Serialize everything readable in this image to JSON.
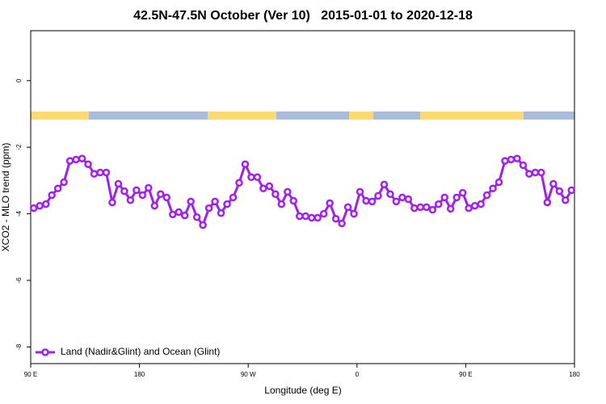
{
  "chart_data": {
    "type": "line",
    "title": "42.5N-47.5N October (Ver 10)   2015-01-01 to 2020-12-18",
    "x_label": "Longitude (deg E)",
    "y_label": "XCO2 - MLO trend (ppm)",
    "xlim": [
      90,
      540
    ],
    "ylim": [
      -8.5,
      1.5
    ],
    "xticks": [
      {
        "value": 90,
        "label": "90 E"
      },
      180,
      {
        "value": 270,
        "label": "90 W"
      },
      {
        "value": 360,
        "label": "0"
      },
      {
        "value": 450,
        "label": "90 E"
      },
      {
        "value": 540,
        "label": "180"
      }
    ],
    "yticks": [
      0,
      -2,
      -4,
      -6,
      -8
    ],
    "legend": "bottomleft",
    "x": [
      92.5,
      97.5,
      102.5,
      107.5,
      112.5,
      117.5,
      122.5,
      127.5,
      132.5,
      137.5,
      142.5,
      147.5,
      152.5,
      157.5,
      162.5,
      167.5,
      172.5,
      177.5,
      182.5,
      187.5,
      192.5,
      197.5,
      202.5,
      207.5,
      212.5,
      217.5,
      222.5,
      227.5,
      232.5,
      237.5,
      242.5,
      247.5,
      252.5,
      257.5,
      262.5,
      267.5,
      272.5,
      277.5,
      282.5,
      287.5,
      292.5,
      297.5,
      302.5,
      307.5,
      312.5,
      317.5,
      322.5,
      327.5,
      332.5,
      337.5,
      342.5,
      347.5,
      352.5,
      357.5,
      362.5,
      367.5,
      372.5,
      377.5,
      382.5,
      387.5,
      392.5,
      397.5,
      402.5,
      407.5,
      412.5,
      417.5,
      422.5,
      427.5,
      432.5,
      437.5,
      442.5,
      447.5,
      452.5,
      457.5,
      462.5,
      467.5,
      472.5,
      477.5,
      482.5,
      487.5,
      492.5,
      497.5,
      502.5,
      507.5,
      512.5,
      517.5,
      522.5,
      527.5,
      532.5,
      537.5
    ],
    "series": [
      {
        "name": "Land (Nadir&Glint) and Ocean (Glint)",
        "color": "#a020f0",
        "values": [
          -3.83,
          -3.76,
          -3.71,
          -3.44,
          -3.24,
          -3.05,
          -2.41,
          -2.37,
          -2.34,
          -2.51,
          -2.8,
          -2.76,
          -2.76,
          -3.66,
          -3.1,
          -3.32,
          -3.59,
          -3.29,
          -3.44,
          -3.22,
          -3.76,
          -3.41,
          -3.51,
          -4.02,
          -3.95,
          -4.05,
          -3.63,
          -4.1,
          -4.34,
          -3.83,
          -3.63,
          -3.98,
          -3.71,
          -3.51,
          -3.07,
          -2.51,
          -2.9,
          -2.9,
          -3.24,
          -3.17,
          -3.41,
          -3.71,
          -3.34,
          -3.61,
          -4.07,
          -4.07,
          -4.12,
          -4.12,
          -4.0,
          -3.68,
          -4.15,
          -4.29,
          -3.8,
          -4.0,
          -3.34,
          -3.61,
          -3.63,
          -3.46,
          -3.12,
          -3.41,
          -3.63,
          -3.51,
          -3.56,
          -3.83,
          -3.8,
          -3.8,
          -3.88,
          -3.71,
          -3.51,
          -3.85,
          -3.51,
          -3.37,
          -3.83,
          -3.76,
          -3.71,
          -3.44,
          -3.24,
          -3.05,
          -2.41,
          -2.37,
          -2.34,
          -2.54,
          -2.8,
          -2.76,
          -2.76,
          -3.66,
          -3.1,
          -3.32,
          -3.59,
          -3.29
        ]
      }
    ]
  }
}
